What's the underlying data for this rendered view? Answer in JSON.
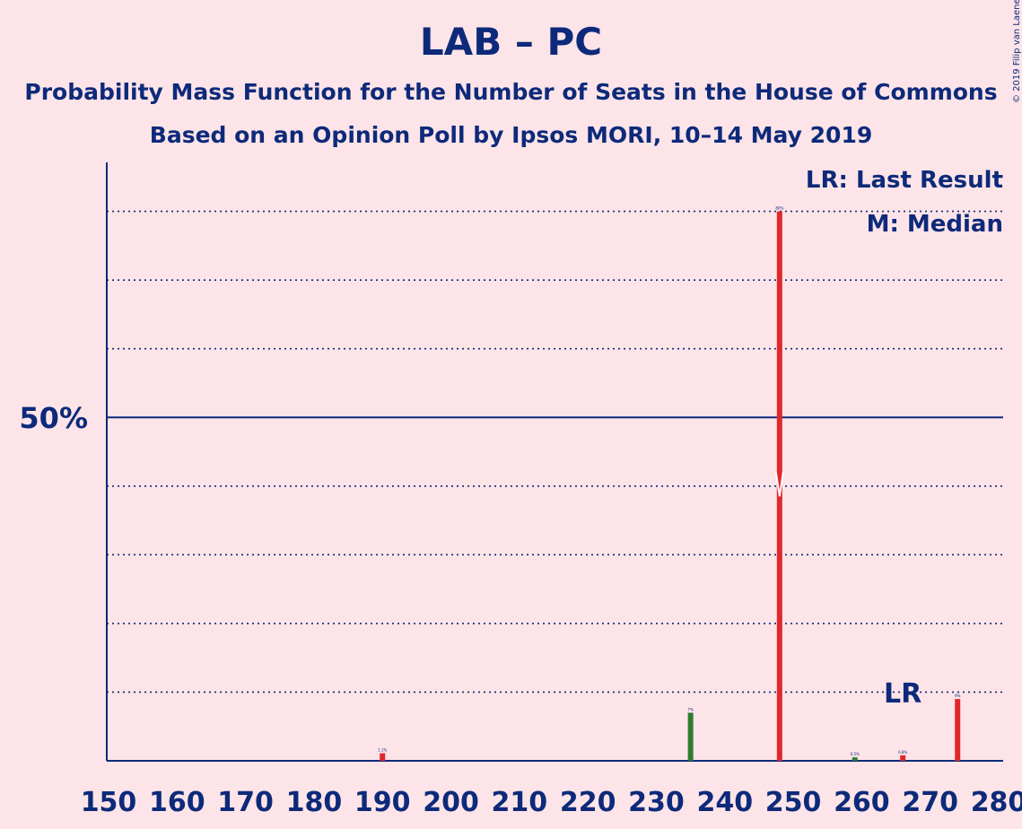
{
  "title": "LAB – PC",
  "subtitle1": "Probability Mass Function for the Number of Seats in the House of Commons",
  "subtitle2": "Based on an Opinion Poll by Ipsos MORI, 10–14 May 2019",
  "copyright": "© 2019 Filip van Laenen",
  "legend": {
    "lr": "LR: Last Result",
    "m": "M: Median"
  },
  "colors": {
    "background": "#fde4e8",
    "text": "#0d2a7a",
    "bar": "#e0282b",
    "bar_last_result": "#2f7d2f"
  },
  "chart_data": {
    "type": "bar",
    "title": "LAB – PC",
    "xlabel": "",
    "ylabel": "",
    "xlim": [
      150,
      280
    ],
    "ylim": [
      0,
      87
    ],
    "x_ticks": [
      150,
      160,
      170,
      180,
      190,
      200,
      210,
      220,
      230,
      240,
      250,
      260,
      270,
      280
    ],
    "y_major_label": "50%",
    "y_major_value": 50,
    "y_gridlines": [
      10,
      20,
      30,
      40,
      60,
      70,
      80
    ],
    "median": 248,
    "median_label": "M",
    "last_result": 266,
    "last_result_label": "LR",
    "bars": [
      {
        "x": 190,
        "value": 1.1,
        "label": "1.1%",
        "color": "red"
      },
      {
        "x": 235,
        "value": 7,
        "label": "7%",
        "color": "green"
      },
      {
        "x": 248,
        "value": 80,
        "label": "80%",
        "color": "red"
      },
      {
        "x": 259,
        "value": 0.5,
        "label": "0.5%",
        "color": "green"
      },
      {
        "x": 266,
        "value": 0.8,
        "label": "0.8%",
        "color": "red"
      },
      {
        "x": 274,
        "value": 9,
        "label": "9%",
        "color": "red"
      }
    ]
  }
}
